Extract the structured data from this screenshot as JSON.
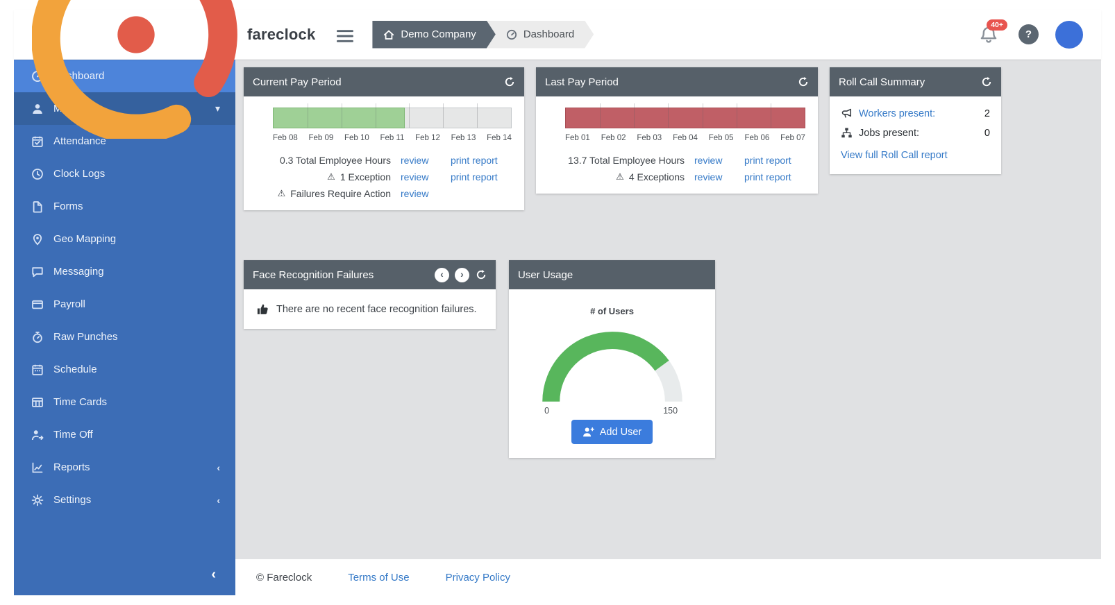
{
  "topbar": {
    "logo_text": "fareclock",
    "breadcrumb": [
      {
        "icon": "home-icon",
        "label": "Demo Company"
      },
      {
        "icon": "dashboard-icon",
        "label": "Dashboard"
      }
    ],
    "notification_badge": "40+",
    "help_text": "?"
  },
  "sidebar": {
    "items": [
      {
        "icon": "dashboard-icon",
        "label": "Dashboard",
        "active": true
      },
      {
        "icon": "users-icon",
        "label": "Manage",
        "expand": "▾"
      },
      {
        "icon": "attendance-icon",
        "label": "Attendance"
      },
      {
        "icon": "clock-history-icon",
        "label": "Clock Logs"
      },
      {
        "icon": "file-icon",
        "label": "Forms"
      },
      {
        "icon": "map-pin-icon",
        "label": "Geo Mapping"
      },
      {
        "icon": "chat-icon",
        "label": "Messaging"
      },
      {
        "icon": "payroll-card-icon",
        "label": "Payroll"
      },
      {
        "icon": "stopwatch-icon",
        "label": "Raw Punches"
      },
      {
        "icon": "calendar-icon",
        "label": "Schedule"
      },
      {
        "icon": "table-icon",
        "label": "Time Cards"
      },
      {
        "icon": "person-leave-icon",
        "label": "Time Off"
      },
      {
        "icon": "chart-icon",
        "label": "Reports",
        "expand": "‹"
      },
      {
        "icon": "gear-icon",
        "label": "Settings",
        "expand": "‹"
      }
    ],
    "collapse_glyph": "‹"
  },
  "cards": {
    "current": {
      "title": "Current Pay Period",
      "dates": [
        "Feb 08",
        "Feb 09",
        "Feb 10",
        "Feb 11",
        "Feb 12",
        "Feb 13",
        "Feb 14"
      ],
      "progress": 0.55,
      "stats": [
        {
          "text": "0.3 Total Employee Hours",
          "review": "review",
          "print": "print report"
        },
        {
          "warn": "⚠",
          "text": "1 Exception",
          "review": "review",
          "print": "print report"
        },
        {
          "warn": "⚠",
          "text": "Failures Require Action",
          "review": "review",
          "print": ""
        }
      ]
    },
    "last": {
      "title": "Last Pay Period",
      "dates": [
        "Feb 01",
        "Feb 02",
        "Feb 03",
        "Feb 04",
        "Feb 05",
        "Feb 06",
        "Feb 07"
      ],
      "progress": 1,
      "stats": [
        {
          "text": "13.7 Total Employee Hours",
          "review": "review",
          "print": "print report"
        },
        {
          "warn": "⚠",
          "text": "4 Exceptions",
          "review": "review",
          "print": "print report"
        }
      ]
    },
    "rollcall": {
      "title": "Roll Call Summary",
      "rows": [
        {
          "icon": "megaphone-icon",
          "label": "Workers present:",
          "value": "2"
        },
        {
          "icon": "sitemap-icon",
          "label": "Jobs present:",
          "value": "0"
        }
      ],
      "footer_link": "View full Roll Call report"
    },
    "face": {
      "title": "Face Recognition Failures",
      "message": "There are no recent face recognition failures.",
      "prev_glyph": "‹",
      "next_glyph": "›"
    },
    "usage": {
      "title": "User Usage",
      "gauge_title": "# of Users",
      "min_label": "0",
      "max_label": "150",
      "button_label": "Add User"
    }
  },
  "footer": {
    "copyright": "© Fareclock",
    "links": [
      "Terms of Use",
      "Privacy Policy"
    ]
  },
  "colors": {
    "sidebar": "#3c6db6",
    "sidebar_active": "#4d84da",
    "card_header": "#566069",
    "link": "#3479c7",
    "bar_green": "#9fd096",
    "bar_red": "#c05f66",
    "gauge_green": "#58b65c",
    "button_blue": "#3b7cdd",
    "badge_red": "#e8544f"
  },
  "chart_data": [
    {
      "type": "bar",
      "subtype": "pay-period-progress",
      "title": "Current Pay Period",
      "categories": [
        "Feb 08",
        "Feb 09",
        "Feb 10",
        "Feb 11",
        "Feb 12",
        "Feb 13",
        "Feb 14"
      ],
      "progress_fraction": 0.55,
      "color": "#9fd096"
    },
    {
      "type": "bar",
      "subtype": "pay-period-progress",
      "title": "Last Pay Period",
      "categories": [
        "Feb 01",
        "Feb 02",
        "Feb 03",
        "Feb 04",
        "Feb 05",
        "Feb 06",
        "Feb 07"
      ],
      "progress_fraction": 1.0,
      "color": "#c05f66"
    },
    {
      "type": "gauge",
      "title": "# of Users",
      "min": 0,
      "max": 150,
      "value": 120,
      "color": "#58b65c"
    }
  ]
}
